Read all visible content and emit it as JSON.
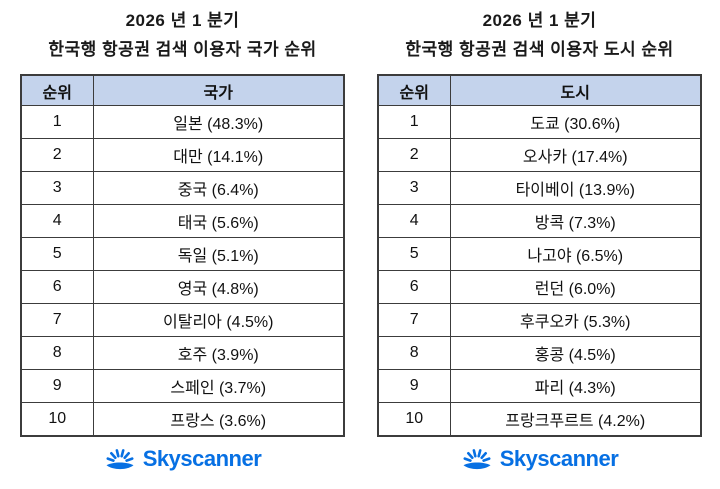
{
  "colors": {
    "header_fill": "#c4d3ec",
    "table_border": "#3c3c3c",
    "logo_blue": "#0770e3",
    "text": "#111111",
    "background": "#ffffff"
  },
  "logo": {
    "text": "Skyscanner",
    "icon": "sunrise-sun-icon"
  },
  "panels": [
    {
      "title_line1": "2026 년 1 분기",
      "title_line2": "한국행 항공권 검색 이용자 국가 순위",
      "headers": [
        "순위",
        "국가"
      ],
      "rows": [
        [
          "1",
          "일본 (48.3%)"
        ],
        [
          "2",
          "대만 (14.1%)"
        ],
        [
          "3",
          "중국 (6.4%)"
        ],
        [
          "4",
          "태국 (5.6%)"
        ],
        [
          "5",
          "독일 (5.1%)"
        ],
        [
          "6",
          "영국 (4.8%)"
        ],
        [
          "7",
          "이탈리아 (4.5%)"
        ],
        [
          "8",
          "호주 (3.9%)"
        ],
        [
          "9",
          "스페인 (3.7%)"
        ],
        [
          "10",
          "프랑스 (3.6%)"
        ]
      ]
    },
    {
      "title_line1": "2026 년 1 분기",
      "title_line2": "한국행 항공권 검색 이용자 도시 순위",
      "headers": [
        "순위",
        "도시"
      ],
      "rows": [
        [
          "1",
          "도쿄 (30.6%)"
        ],
        [
          "2",
          "오사카 (17.4%)"
        ],
        [
          "3",
          "타이베이 (13.9%)"
        ],
        [
          "4",
          "방콕 (7.3%)"
        ],
        [
          "5",
          "나고야 (6.5%)"
        ],
        [
          "6",
          "런던 (6.0%)"
        ],
        [
          "7",
          "후쿠오카 (5.3%)"
        ],
        [
          "8",
          "홍콩 (4.5%)"
        ],
        [
          "9",
          "파리 (4.3%)"
        ],
        [
          "10",
          "프랑크푸르트 (4.2%)"
        ]
      ]
    }
  ],
  "chart_data": [
    {
      "type": "table",
      "title": "2026 년 1 분기 한국행 항공권 검색 이용자 국가 순위",
      "columns": [
        "순위",
        "국가"
      ],
      "categories": [
        "일본",
        "대만",
        "중국",
        "태국",
        "독일",
        "영국",
        "이탈리아",
        "호주",
        "스페인",
        "프랑스"
      ],
      "values": [
        48.3,
        14.1,
        6.4,
        5.6,
        5.1,
        4.8,
        4.5,
        3.9,
        3.7,
        3.6
      ],
      "unit": "%",
      "source_brand": "Skyscanner"
    },
    {
      "type": "table",
      "title": "2026 년 1 분기 한국행 항공권 검색 이용자 도시 순위",
      "columns": [
        "순위",
        "도시"
      ],
      "categories": [
        "도쿄",
        "오사카",
        "타이베이",
        "방콕",
        "나고야",
        "런던",
        "후쿠오카",
        "홍콩",
        "파리",
        "프랑크푸르트"
      ],
      "values": [
        30.6,
        17.4,
        13.9,
        7.3,
        6.5,
        6.0,
        5.3,
        4.5,
        4.3,
        4.2
      ],
      "unit": "%",
      "source_brand": "Skyscanner"
    }
  ]
}
